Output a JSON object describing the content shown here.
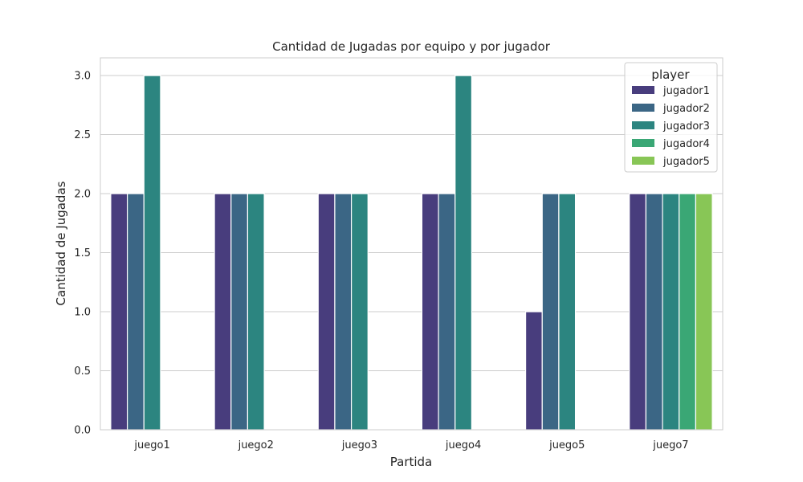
{
  "chart_data": {
    "type": "bar",
    "title": "Cantidad de Jugadas por equipo y por jugador",
    "xlabel": "Partida",
    "ylabel": "Cantidad de Jugadas",
    "categories": [
      "juego1",
      "juego2",
      "juego3",
      "juego4",
      "juego5",
      "juego7"
    ],
    "ylim": [
      0,
      3.15
    ],
    "yticks": [
      0.0,
      0.5,
      1.0,
      1.5,
      2.0,
      2.5,
      3.0
    ],
    "ytick_labels": [
      "0.0",
      "0.5",
      "1.0",
      "1.5",
      "2.0",
      "2.5",
      "3.0"
    ],
    "grid": "horizontal",
    "legend": {
      "title": "player",
      "placement": "top-right"
    },
    "series": [
      {
        "name": "jugador1",
        "color": "#483d7d",
        "values": [
          2,
          2,
          2,
          2,
          1,
          2
        ]
      },
      {
        "name": "jugador2",
        "color": "#3b6685",
        "values": [
          2,
          2,
          2,
          2,
          2,
          2
        ]
      },
      {
        "name": "jugador3",
        "color": "#2c8580",
        "values": [
          3,
          2,
          2,
          3,
          2,
          2
        ]
      },
      {
        "name": "jugador4",
        "color": "#3aa775",
        "values": [
          null,
          null,
          null,
          null,
          null,
          2
        ]
      },
      {
        "name": "jugador5",
        "color": "#88c656",
        "values": [
          null,
          null,
          null,
          null,
          null,
          2
        ]
      }
    ]
  }
}
